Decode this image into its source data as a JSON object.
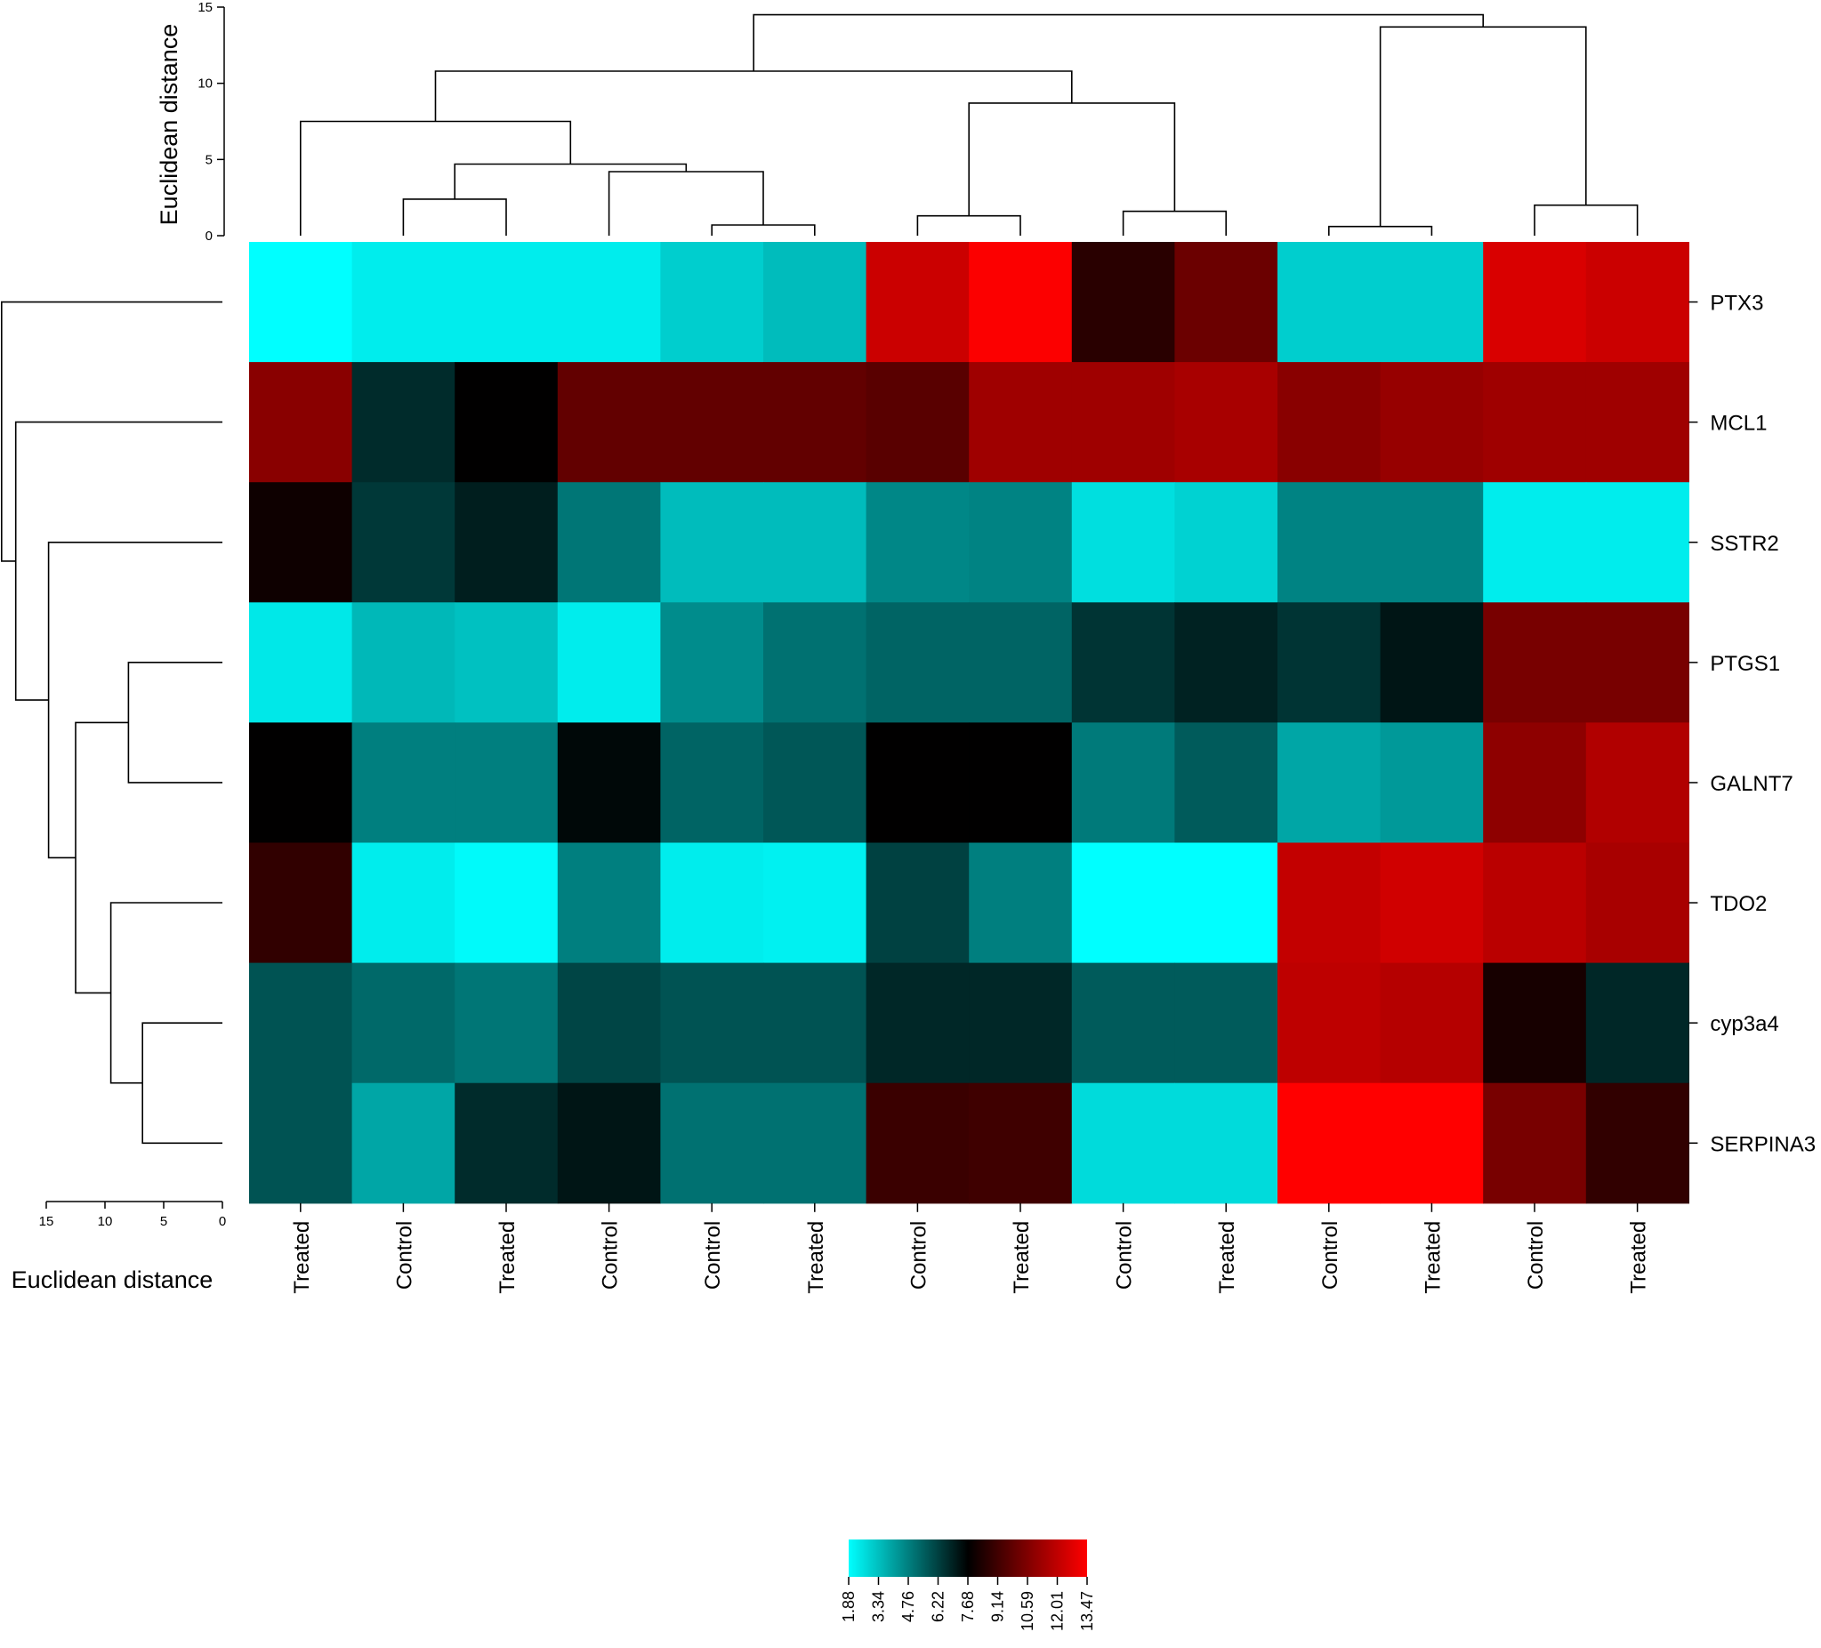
{
  "chart_data": {
    "type": "heatmap",
    "title": "",
    "rows": [
      "PTX3",
      "MCL1",
      "SSTR2",
      "PTGS1",
      "GALNT7",
      "TDO2",
      "cyp3a4",
      "SERPINA3"
    ],
    "columns": [
      "Treated",
      "Control",
      "Treated",
      "Control",
      "Control",
      "Treated",
      "Control",
      "Treated",
      "Control",
      "Treated",
      "Control",
      "Treated",
      "Control",
      "Treated"
    ],
    "values": [
      [
        1.88,
        2.3,
        2.3,
        2.3,
        3.0,
        3.4,
        12.3,
        13.4,
        8.6,
        10.1,
        3.0,
        3.0,
        12.6,
        12.3
      ],
      [
        10.8,
        6.7,
        7.7,
        9.9,
        9.9,
        9.9,
        9.7,
        11.3,
        11.3,
        11.5,
        10.8,
        11.1,
        11.3,
        11.3
      ],
      [
        8.0,
        6.4,
        7.0,
        5.0,
        3.4,
        3.4,
        4.6,
        4.7,
        2.6,
        2.9,
        4.7,
        4.7,
        2.3,
        2.3
      ],
      [
        2.4,
        3.5,
        3.3,
        2.3,
        4.5,
        5.1,
        5.4,
        5.4,
        6.5,
        6.9,
        6.5,
        7.2,
        10.4,
        10.4
      ],
      [
        7.7,
        4.8,
        4.8,
        7.5,
        5.4,
        5.7,
        7.7,
        7.7,
        4.9,
        5.6,
        3.9,
        4.2,
        10.9,
        11.7
      ],
      [
        8.8,
        2.3,
        2.0,
        4.8,
        2.3,
        2.2,
        6.2,
        4.8,
        1.88,
        1.88,
        12.1,
        12.4,
        11.9,
        11.5
      ],
      [
        5.8,
        5.3,
        5.0,
        6.1,
        5.8,
        5.8,
        6.8,
        6.8,
        5.6,
        5.6,
        12.0,
        11.8,
        8.2,
        6.8
      ],
      [
        5.8,
        3.9,
        6.7,
        7.2,
        5.1,
        5.1,
        9.0,
        9.1,
        2.7,
        2.7,
        13.47,
        13.47,
        10.4,
        8.8
      ]
    ],
    "color_scale": {
      "colors": [
        "#00ffff",
        "#000000",
        "#ff0000"
      ],
      "min": 1.88,
      "mid": 7.68,
      "max": 13.47,
      "ticks": [
        "1.88",
        "3.34",
        "4.76",
        "6.22",
        "7.68",
        "9.14",
        "10.59",
        "12.01",
        "13.47"
      ]
    },
    "column_dendrogram": {
      "ylabel": "Euclidean distance",
      "ylim": [
        0,
        15
      ],
      "ticks": [
        0,
        5,
        10,
        15
      ],
      "merges": [
        {
          "a": 5,
          "b": 6,
          "h": 0.7
        },
        {
          "a": 11,
          "b": 12,
          "h": 0.6
        },
        {
          "a": 9,
          "b": 10,
          "h": 1.6
        },
        {
          "a": 7,
          "b": 8,
          "h": 1.3
        },
        {
          "a": 13,
          "b": 14,
          "h": 2.0
        },
        {
          "a": 2,
          "b": 3,
          "h": 2.4
        },
        {
          "a": 4,
          "b": -1,
          "h": 4.2
        },
        {
          "a": -6,
          "b": -7,
          "h": 4.7
        },
        {
          "a": 1,
          "b": -8,
          "h": 7.5
        },
        {
          "a": -4,
          "b": -3,
          "h": 8.7
        },
        {
          "a": -9,
          "b": -10,
          "h": 10.8
        },
        {
          "a": -2,
          "b": -5,
          "h": 13.7
        },
        {
          "a": -11,
          "b": -12,
          "h": 14.5
        }
      ]
    },
    "row_dendrogram": {
      "xlabel": "Euclidean distance",
      "xlim": [
        0,
        15
      ],
      "ticks": [
        15,
        10,
        5,
        0
      ],
      "merges": [
        {
          "a": 4,
          "b": 5,
          "h": 8.0
        },
        {
          "a": 7,
          "b": 8,
          "h": 6.8
        },
        {
          "a": 6,
          "b": -2,
          "h": 9.5
        },
        {
          "a": -1,
          "b": -3,
          "h": 12.5
        },
        {
          "a": 3,
          "b": -4,
          "h": 14.8
        },
        {
          "a": 2,
          "b": -5,
          "h": 17.6
        },
        {
          "a": 1,
          "b": -6,
          "h": 18.8
        }
      ]
    }
  }
}
